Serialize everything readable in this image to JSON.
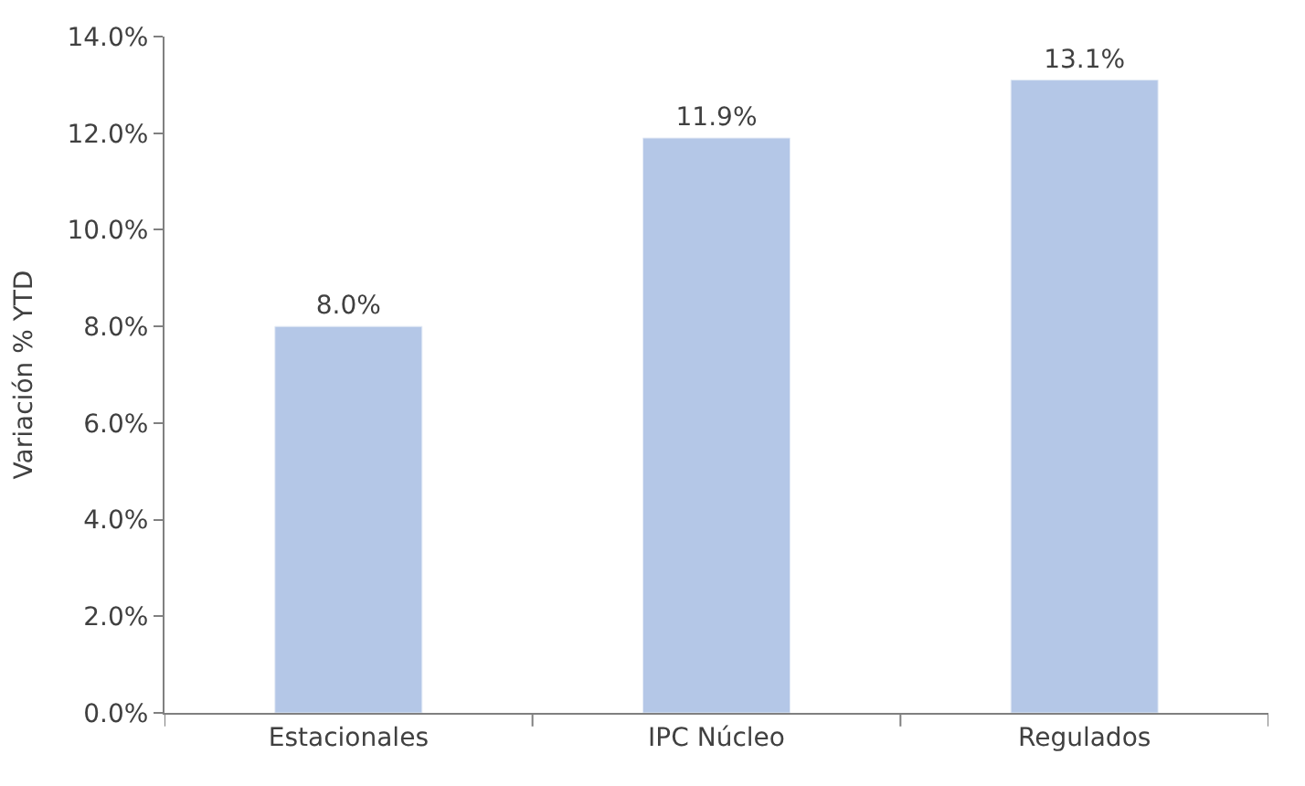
{
  "chart_data": {
    "type": "bar",
    "ylabel": "Variación % YTD",
    "categories": [
      "Estacionales",
      "IPC Núcleo",
      "Regulados"
    ],
    "values": [
      8.0,
      11.9,
      13.1
    ],
    "color": "#b4c7e7",
    "value_labels": [
      "8.0%",
      "11.9%",
      "13.1%"
    ],
    "ylim": [
      0,
      14
    ],
    "yticks": [
      {
        "value": 0,
        "label": "0.0%"
      },
      {
        "value": 2,
        "label": "2.0%"
      },
      {
        "value": 4,
        "label": "4.0%"
      },
      {
        "value": 6,
        "label": "6.0%"
      },
      {
        "value": 8,
        "label": "8.0%"
      },
      {
        "value": 10,
        "label": "10.0%"
      },
      {
        "value": 12,
        "label": "12.0%"
      },
      {
        "value": 14,
        "label": "14.0%"
      }
    ],
    "legend": false
  }
}
